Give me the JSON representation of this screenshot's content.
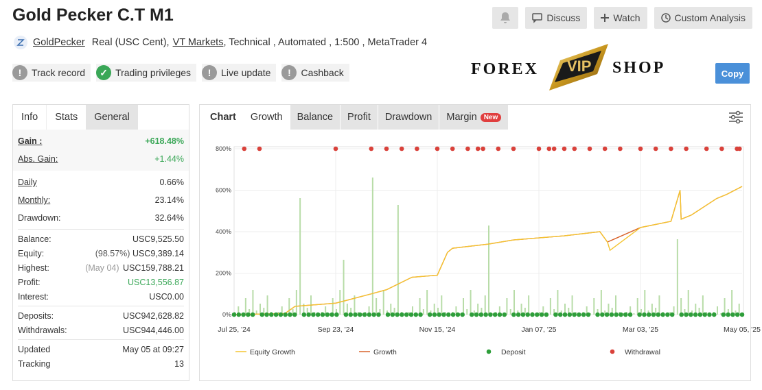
{
  "title": "Gold Pecker C.T M1",
  "header_buttons": {
    "discuss": "Discuss",
    "watch": "Watch",
    "custom_analysis": "Custom Analysis"
  },
  "account": {
    "owner": "GoldPecker",
    "type": "Real (USC Cent),",
    "broker": "VT Markets",
    "details": ", Technical , Automated , 1:500 , MetaTrader 4"
  },
  "badges": [
    "Track record",
    "Trading privileges",
    "Live update",
    "Cashback"
  ],
  "logo": {
    "left_text": "FOREX",
    "center_text": "VIP",
    "right_text": "SHOP"
  },
  "copy_label": "Copy",
  "left_tabs": [
    "Info",
    "Stats",
    "General"
  ],
  "stats": {
    "gain_label": "Gain :",
    "gain": "+618.48%",
    "abs_gain_label": "Abs. Gain:",
    "abs_gain": "+1.44%",
    "daily_label": "Daily",
    "daily": "0.66%",
    "monthly_label": "Monthly:",
    "monthly": "23.14%",
    "drawdown_label": "Drawdown:",
    "drawdown": "32.64%",
    "balance_label": "Balance:",
    "balance": "USC9,525.50",
    "equity_label": "Equity:",
    "equity_pct": "(98.57%)",
    "equity": "USC9,389.14",
    "highest_label": "Highest:",
    "highest_date": "(May 04)",
    "highest": "USC159,788.21",
    "profit_label": "Profit:",
    "profit": "USC13,556.87",
    "interest_label": "Interest:",
    "interest": "USC0.00",
    "deposits_label": "Deposits:",
    "deposits": "USC942,628.82",
    "withdrawals_label": "Withdrawals:",
    "withdrawals": "USC944,446.00",
    "updated_label": "Updated",
    "updated": "May 05 at 09:27",
    "tracking_label": "Tracking",
    "tracking": "13"
  },
  "chart_tabs": {
    "chart": "Chart",
    "growth": "Growth",
    "balance": "Balance",
    "profit": "Profit",
    "drawdown": "Drawdown",
    "margin": "Margin",
    "new_tag": "New"
  },
  "colors": {
    "equity": "#f4c430",
    "growth": "#d9622b",
    "deposit": "#2e9e3a",
    "withdrawal": "#d9413a",
    "bars": "#b8dca8",
    "accent": "#4a90d9"
  },
  "chart_data": {
    "type": "line",
    "x_tick_labels": [
      "Jul 25, '24",
      "Sep 23, '24",
      "Nov 15, '24",
      "Jan 07, '25",
      "Mar 03, '25",
      "May 05, '25"
    ],
    "y_tick_labels": [
      "0%",
      "200%",
      "400%",
      "600%",
      "800%"
    ],
    "ylim": [
      0,
      800
    ],
    "grid": true,
    "legend_position": "bottom",
    "legend": [
      "Equity Growth",
      "Growth",
      "Deposit",
      "Withdrawal"
    ],
    "series": [
      {
        "name": "Growth",
        "x": [
          0,
          0.1,
          0.12,
          0.2,
          0.27,
          0.3,
          0.35,
          0.4,
          0.42,
          0.43,
          0.5,
          0.55,
          0.65,
          0.72,
          0.735,
          0.8,
          0.86,
          0.878,
          0.88,
          0.9,
          0.95,
          0.97,
          1.0
        ],
        "values": [
          0,
          5,
          40,
          55,
          100,
          120,
          180,
          190,
          300,
          320,
          340,
          360,
          380,
          400,
          350,
          420,
          450,
          600,
          460,
          480,
          560,
          580,
          618
        ]
      },
      {
        "name": "Equity Growth",
        "x": [
          0,
          0.1,
          0.12,
          0.2,
          0.27,
          0.3,
          0.35,
          0.4,
          0.42,
          0.43,
          0.5,
          0.55,
          0.65,
          0.72,
          0.735,
          0.74,
          0.8,
          0.86,
          0.878,
          0.88,
          0.9,
          0.95,
          0.97,
          1.0
        ],
        "values": [
          0,
          5,
          40,
          55,
          100,
          120,
          180,
          190,
          300,
          320,
          340,
          360,
          380,
          400,
          350,
          310,
          420,
          450,
          600,
          460,
          480,
          560,
          580,
          618
        ]
      }
    ],
    "withdrawal_x": [
      0.02,
      0.05,
      0.2,
      0.27,
      0.3,
      0.33,
      0.36,
      0.4,
      0.43,
      0.46,
      0.48,
      0.49,
      0.52,
      0.55,
      0.6,
      0.62,
      0.63,
      0.65,
      0.67,
      0.7,
      0.73,
      0.76,
      0.8,
      0.83,
      0.86,
      0.89,
      0.93,
      0.96,
      0.99,
      0.995
    ]
  }
}
